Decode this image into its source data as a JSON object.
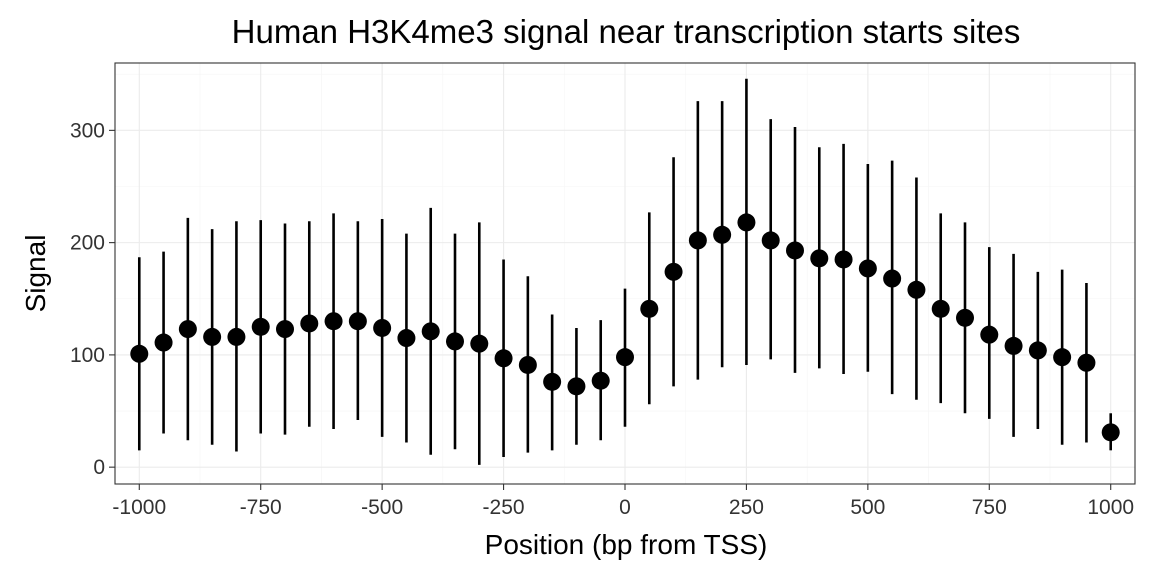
{
  "chart_data": {
    "type": "scatter",
    "title": "Human H3K4me3 signal near transcription starts sites",
    "xlabel": "Position (bp from TSS)",
    "ylabel": "Signal",
    "xlim": [
      -1050,
      1050
    ],
    "ylim": [
      -15,
      360
    ],
    "x_ticks": [
      -1000,
      -750,
      -500,
      -250,
      0,
      250,
      500,
      750,
      1000
    ],
    "x_tick_labels": [
      "-1000",
      "-750",
      "-500",
      "-250",
      "0",
      "250",
      "500",
      "750",
      "1000"
    ],
    "y_ticks": [
      0,
      100,
      200,
      300
    ],
    "y_tick_labels": [
      "0",
      "100",
      "200",
      "300"
    ],
    "grid": true,
    "legend": false,
    "point_color": "#000000",
    "points": [
      {
        "x": -1000,
        "y": 101,
        "ymin": 15,
        "ymax": 187
      },
      {
        "x": -950,
        "y": 111,
        "ymin": 30,
        "ymax": 192
      },
      {
        "x": -900,
        "y": 123,
        "ymin": 24,
        "ymax": 222
      },
      {
        "x": -850,
        "y": 116,
        "ymin": 20,
        "ymax": 212
      },
      {
        "x": -800,
        "y": 116,
        "ymin": 14,
        "ymax": 219
      },
      {
        "x": -750,
        "y": 125,
        "ymin": 30,
        "ymax": 220
      },
      {
        "x": -700,
        "y": 123,
        "ymin": 29,
        "ymax": 217
      },
      {
        "x": -650,
        "y": 128,
        "ymin": 36,
        "ymax": 219
      },
      {
        "x": -600,
        "y": 130,
        "ymin": 34,
        "ymax": 226
      },
      {
        "x": -550,
        "y": 130,
        "ymin": 42,
        "ymax": 219
      },
      {
        "x": -500,
        "y": 124,
        "ymin": 27,
        "ymax": 221
      },
      {
        "x": -450,
        "y": 115,
        "ymin": 22,
        "ymax": 208
      },
      {
        "x": -400,
        "y": 121,
        "ymin": 11,
        "ymax": 231
      },
      {
        "x": -350,
        "y": 112,
        "ymin": 16,
        "ymax": 208
      },
      {
        "x": -300,
        "y": 110,
        "ymin": 2,
        "ymax": 218
      },
      {
        "x": -250,
        "y": 97,
        "ymin": 9,
        "ymax": 185
      },
      {
        "x": -200,
        "y": 91,
        "ymin": 13,
        "ymax": 170
      },
      {
        "x": -150,
        "y": 76,
        "ymin": 15,
        "ymax": 136
      },
      {
        "x": -100,
        "y": 72,
        "ymin": 20,
        "ymax": 124
      },
      {
        "x": -50,
        "y": 77,
        "ymin": 24,
        "ymax": 131
      },
      {
        "x": 0,
        "y": 98,
        "ymin": 36,
        "ymax": 159
      },
      {
        "x": 50,
        "y": 141,
        "ymin": 56,
        "ymax": 227
      },
      {
        "x": 100,
        "y": 174,
        "ymin": 72,
        "ymax": 276
      },
      {
        "x": 150,
        "y": 202,
        "ymin": 78,
        "ymax": 326
      },
      {
        "x": 200,
        "y": 207,
        "ymin": 89,
        "ymax": 326
      },
      {
        "x": 250,
        "y": 218,
        "ymin": 91,
        "ymax": 346
      },
      {
        "x": 300,
        "y": 202,
        "ymin": 96,
        "ymax": 310
      },
      {
        "x": 350,
        "y": 193,
        "ymin": 84,
        "ymax": 303
      },
      {
        "x": 400,
        "y": 186,
        "ymin": 88,
        "ymax": 285
      },
      {
        "x": 450,
        "y": 185,
        "ymin": 83,
        "ymax": 288
      },
      {
        "x": 500,
        "y": 177,
        "ymin": 85,
        "ymax": 270
      },
      {
        "x": 550,
        "y": 168,
        "ymin": 65,
        "ymax": 273
      },
      {
        "x": 600,
        "y": 158,
        "ymin": 60,
        "ymax": 258
      },
      {
        "x": 650,
        "y": 141,
        "ymin": 57,
        "ymax": 226
      },
      {
        "x": 700,
        "y": 133,
        "ymin": 48,
        "ymax": 218
      },
      {
        "x": 750,
        "y": 118,
        "ymin": 43,
        "ymax": 196
      },
      {
        "x": 800,
        "y": 108,
        "ymin": 27,
        "ymax": 190
      },
      {
        "x": 850,
        "y": 104,
        "ymin": 34,
        "ymax": 174
      },
      {
        "x": 900,
        "y": 98,
        "ymin": 20,
        "ymax": 176
      },
      {
        "x": 950,
        "y": 93,
        "ymin": 22,
        "ymax": 164
      },
      {
        "x": 1000,
        "y": 31,
        "ymin": 15,
        "ymax": 48
      }
    ]
  }
}
